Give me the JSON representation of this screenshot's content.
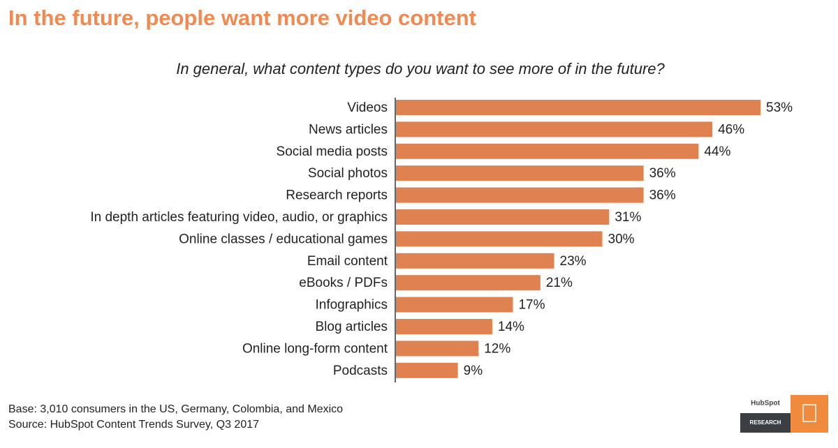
{
  "chart_data": {
    "type": "barh",
    "title": "In the future, people want more video content",
    "subtitle": "In general, what content types do you want to see more of in the future?",
    "categories": [
      "Videos",
      "News articles",
      "Social media posts",
      "Social photos",
      "Research reports",
      "In depth articles featuring video, audio, or graphics",
      "Online classes / educational games",
      "Email content",
      "eBooks / PDFs",
      "Infographics",
      "Blog articles",
      "Online long-form content",
      "Podcasts"
    ],
    "values": [
      53,
      46,
      44,
      36,
      36,
      31,
      30,
      23,
      21,
      17,
      14,
      12,
      9
    ],
    "value_labels": [
      "53%",
      "46%",
      "44%",
      "36%",
      "36%",
      "31%",
      "30%",
      "23%",
      "21%",
      "17%",
      "14%",
      "12%",
      "9%"
    ],
    "color": "#e0824f",
    "footnotes": [
      "Base: 3,010 consumers in the US, Germany, Colombia, and Mexico",
      "Source: HubSpot Content Trends Survey, Q3 2017"
    ],
    "brand": {
      "name": "HubSpot",
      "label": "RESEARCH"
    }
  }
}
